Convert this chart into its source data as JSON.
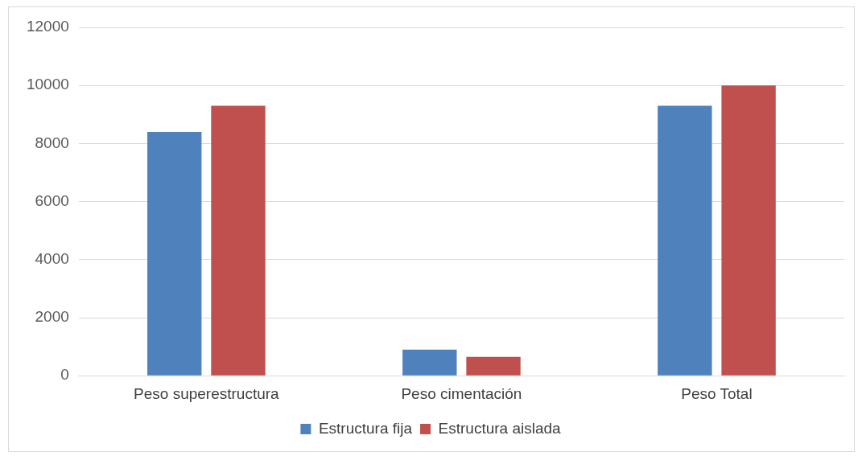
{
  "chart_data": {
    "type": "bar",
    "categories": [
      "Peso superestructura",
      "Peso cimentación",
      "Peso Total"
    ],
    "series": [
      {
        "name": "Estructura fija",
        "color": "#4f81bd",
        "values": [
          8400,
          900,
          9300
        ]
      },
      {
        "name": "Estructura aislada",
        "color": "#c0504d",
        "values": [
          9300,
          650,
          10000
        ]
      }
    ],
    "ylim": [
      0,
      12000
    ],
    "yticks": [
      0,
      2000,
      4000,
      6000,
      8000,
      10000,
      12000
    ],
    "grid": "y",
    "legend": "bottom"
  }
}
